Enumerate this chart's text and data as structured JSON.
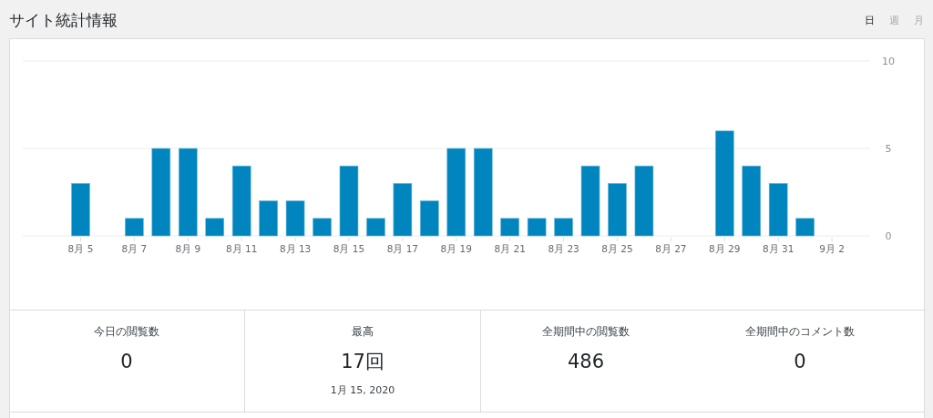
{
  "chart_data": {
    "type": "bar",
    "title": "サイト統計情報",
    "categories": [
      null,
      "8月 5",
      null,
      "8月 7",
      null,
      "8月 9",
      null,
      "8月 11",
      null,
      "8月 13",
      null,
      "8月 15",
      null,
      "8月 17",
      null,
      "8月 19",
      null,
      "8月 21",
      null,
      "8月 23",
      null,
      "8月 25",
      null,
      "8月 27",
      null,
      "8月 29",
      null,
      "8月 31",
      null,
      "9月 2"
    ],
    "values": [
      0,
      3,
      0,
      1,
      5,
      5,
      1,
      4,
      2,
      2,
      1,
      4,
      1,
      3,
      2,
      5,
      5,
      1,
      1,
      1,
      4,
      3,
      4,
      0,
      0,
      6,
      4,
      3,
      1,
      0
    ],
    "color": "#0085be",
    "ylim": [
      0,
      10
    ],
    "yticks": [
      0,
      5,
      10
    ],
    "grid": "y",
    "annotations": [
      "日",
      "週",
      "月",
      "今日の閲覧数",
      "0",
      "最高",
      "17回",
      "1月 15, 2020",
      "全期間中の閲覧数",
      "486",
      "全期間中のコメント数",
      "0"
    ]
  }
}
